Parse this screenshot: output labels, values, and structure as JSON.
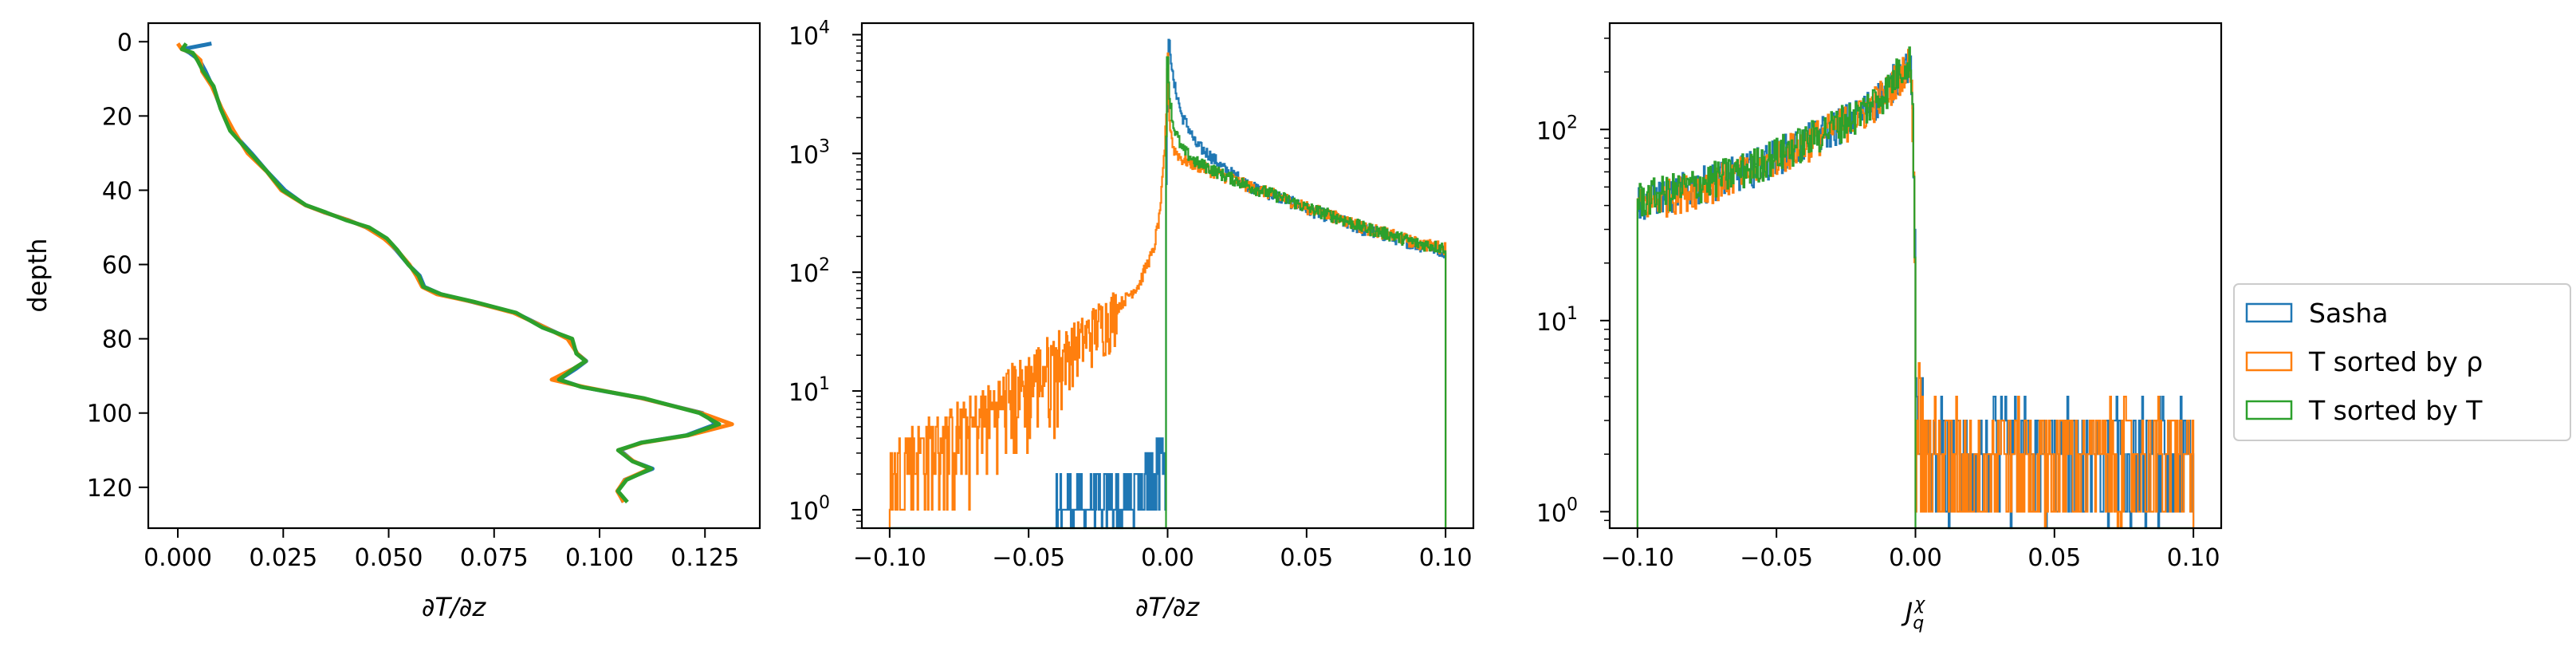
{
  "colors": {
    "sasha": "#1f77b4",
    "rho": "#ff7f0e",
    "t": "#2ca02c"
  },
  "legend": {
    "entries": [
      {
        "label": "Sasha",
        "color": "#1f77b4"
      },
      {
        "label": "T sorted by ρ",
        "color": "#ff7f0e"
      },
      {
        "label": "T sorted by T",
        "color": "#2ca02c"
      }
    ],
    "placement": "right, outside axes"
  },
  "chart_data": [
    {
      "type": "line",
      "xlabel": "∂T/∂z",
      "ylabel": "depth",
      "xlim": [
        -0.007,
        0.138
      ],
      "ylim": [
        131,
        -5
      ],
      "y_inverted": true,
      "xticks": [
        0.0,
        0.025,
        0.05,
        0.075,
        0.1,
        0.125
      ],
      "xtick_labels": [
        "0.000",
        "0.025",
        "0.050",
        "0.075",
        "0.100",
        "0.125"
      ],
      "yticks": [
        0,
        20,
        40,
        60,
        80,
        100,
        120
      ],
      "yticks_labels": [
        "0",
        "20",
        "40",
        "60",
        "80",
        "100",
        "120"
      ],
      "grid": false,
      "series": [
        {
          "name": "Sasha",
          "color": "#1f77b4",
          "points": [
            [
              0.008,
              0.5
            ],
            [
              0.001,
              2
            ],
            [
              0.003,
              3
            ],
            [
              0.005,
              5
            ],
            [
              0.006,
              8
            ],
            [
              0.008,
              12
            ],
            [
              0.01,
              18
            ],
            [
              0.013,
              24
            ],
            [
              0.017,
              30
            ],
            [
              0.021,
              35
            ],
            [
              0.025,
              40
            ],
            [
              0.03,
              44
            ],
            [
              0.035,
              46
            ],
            [
              0.04,
              48
            ],
            [
              0.045,
              50
            ],
            [
              0.049,
              53
            ],
            [
              0.052,
              56
            ],
            [
              0.055,
              60
            ],
            [
              0.057,
              63
            ],
            [
              0.058,
              66
            ],
            [
              0.062,
              68
            ],
            [
              0.07,
              70
            ],
            [
              0.08,
              73
            ],
            [
              0.087,
              77
            ],
            [
              0.093,
              80
            ],
            [
              0.095,
              84
            ],
            [
              0.097,
              86
            ],
            [
              0.094,
              88
            ],
            [
              0.09,
              91
            ],
            [
              0.096,
              93
            ],
            [
              0.11,
              96
            ],
            [
              0.124,
              100
            ],
            [
              0.128,
              103
            ],
            [
              0.121,
              106
            ],
            [
              0.11,
              108
            ],
            [
              0.105,
              110
            ],
            [
              0.108,
              113
            ],
            [
              0.112,
              115
            ],
            [
              0.106,
              118
            ],
            [
              0.104,
              121
            ],
            [
              0.106,
              124
            ]
          ]
        },
        {
          "name": "T sorted by ρ",
          "color": "#ff7f0e",
          "points": [
            [
              0.0,
              0.5
            ],
            [
              0.001,
              2
            ],
            [
              0.003,
              3
            ],
            [
              0.005,
              5
            ],
            [
              0.006,
              8
            ],
            [
              0.008,
              12
            ],
            [
              0.01,
              18
            ],
            [
              0.013,
              24
            ],
            [
              0.017,
              30
            ],
            [
              0.021,
              35
            ],
            [
              0.025,
              40
            ],
            [
              0.03,
              44
            ],
            [
              0.035,
              46
            ],
            [
              0.04,
              48
            ],
            [
              0.045,
              50
            ],
            [
              0.049,
              53
            ],
            [
              0.052,
              56
            ],
            [
              0.055,
              60
            ],
            [
              0.056,
              63
            ],
            [
              0.058,
              66
            ],
            [
              0.062,
              68
            ],
            [
              0.07,
              70
            ],
            [
              0.08,
              73
            ],
            [
              0.087,
              77
            ],
            [
              0.093,
              80
            ],
            [
              0.095,
              84
            ],
            [
              0.097,
              86
            ],
            [
              0.094,
              88
            ],
            [
              0.089,
              91
            ],
            [
              0.096,
              93
            ],
            [
              0.11,
              96
            ],
            [
              0.124,
              100
            ],
            [
              0.131,
              103
            ],
            [
              0.121,
              106
            ],
            [
              0.11,
              108
            ],
            [
              0.105,
              110
            ],
            [
              0.108,
              113
            ],
            [
              0.112,
              115
            ],
            [
              0.106,
              118
            ],
            [
              0.104,
              121
            ],
            [
              0.106,
              124
            ]
          ]
        },
        {
          "name": "T sorted by T",
          "color": "#2ca02c",
          "points": [
            [
              0.002,
              0.5
            ],
            [
              0.001,
              2
            ],
            [
              0.003,
              3
            ],
            [
              0.005,
              5
            ],
            [
              0.006,
              8
            ],
            [
              0.008,
              12
            ],
            [
              0.01,
              18
            ],
            [
              0.013,
              24
            ],
            [
              0.017,
              30
            ],
            [
              0.021,
              35
            ],
            [
              0.025,
              40
            ],
            [
              0.03,
              44
            ],
            [
              0.035,
              46
            ],
            [
              0.04,
              48
            ],
            [
              0.045,
              50
            ],
            [
              0.049,
              53
            ],
            [
              0.052,
              56
            ],
            [
              0.055,
              60
            ],
            [
              0.057,
              63
            ],
            [
              0.058,
              66
            ],
            [
              0.062,
              68
            ],
            [
              0.07,
              70
            ],
            [
              0.08,
              73
            ],
            [
              0.087,
              77
            ],
            [
              0.093,
              80
            ],
            [
              0.095,
              84
            ],
            [
              0.097,
              86
            ],
            [
              0.094,
              88
            ],
            [
              0.09,
              91
            ],
            [
              0.096,
              93
            ],
            [
              0.11,
              96
            ],
            [
              0.124,
              100
            ],
            [
              0.128,
              103
            ],
            [
              0.121,
              106
            ],
            [
              0.11,
              108
            ],
            [
              0.105,
              110
            ],
            [
              0.108,
              113
            ],
            [
              0.112,
              115
            ],
            [
              0.106,
              118
            ],
            [
              0.104,
              121
            ],
            [
              0.106,
              124
            ]
          ]
        }
      ]
    },
    {
      "type": "histogram",
      "xlabel": "∂T/∂z",
      "ylabel": "",
      "xlim": [
        -0.11,
        0.11
      ],
      "ylim": [
        0.7,
        12500
      ],
      "yscale": "log",
      "xticks": [
        -0.1,
        -0.05,
        0.0,
        0.05,
        0.1
      ],
      "xtick_labels": [
        "−0.10",
        "−0.05",
        "0.00",
        "0.05",
        "0.10"
      ],
      "yticks": [
        1,
        10,
        100,
        1000,
        10000
      ],
      "ytick_labels": [
        "10",
        "10",
        "10",
        "10",
        "10"
      ],
      "ytick_exponents": [
        "0",
        "1",
        "2",
        "3",
        "4"
      ],
      "grid": false,
      "series": [
        {
          "name": "Sasha",
          "color": "#1f77b4",
          "shape": [
            [
              -0.1,
              0
            ],
            [
              -0.04,
              0
            ],
            [
              -0.04,
              1
            ],
            [
              -0.02,
              1
            ],
            [
              -0.01,
              1.5
            ],
            [
              -0.002,
              3
            ],
            [
              -0.0005,
              4
            ],
            [
              0.0,
              3500
            ],
            [
              0.0005,
              9000
            ],
            [
              0.002,
              4000
            ],
            [
              0.005,
              2100
            ],
            [
              0.01,
              1200
            ],
            [
              0.02,
              750
            ],
            [
              0.03,
              520
            ],
            [
              0.05,
              340
            ],
            [
              0.07,
              230
            ],
            [
              0.09,
              170
            ],
            [
              0.1,
              150
            ]
          ]
        },
        {
          "name": "T sorted by ρ",
          "color": "#ff7f0e",
          "shape": [
            [
              -0.1,
              2
            ],
            [
              -0.09,
              3
            ],
            [
              -0.08,
              4
            ],
            [
              -0.07,
              5
            ],
            [
              -0.06,
              8
            ],
            [
              -0.05,
              12
            ],
            [
              -0.04,
              18
            ],
            [
              -0.03,
              28
            ],
            [
              -0.02,
              45
            ],
            [
              -0.015,
              60
            ],
            [
              -0.01,
              80
            ],
            [
              -0.005,
              150
            ],
            [
              -0.003,
              280
            ],
            [
              -0.002,
              500
            ],
            [
              -0.001,
              1000
            ],
            [
              -0.0003,
              2500
            ],
            [
              0.0,
              8000
            ],
            [
              0.0005,
              2000
            ],
            [
              0.002,
              1100
            ],
            [
              0.005,
              900
            ],
            [
              0.01,
              800
            ],
            [
              0.02,
              650
            ],
            [
              0.03,
              520
            ],
            [
              0.05,
              350
            ],
            [
              0.07,
              240
            ],
            [
              0.09,
              175
            ],
            [
              0.1,
              160
            ]
          ]
        },
        {
          "name": "T sorted by T",
          "color": "#2ca02c",
          "shape": [
            [
              -0.0005,
              0
            ],
            [
              0.0,
              9000
            ],
            [
              0.0005,
              3200
            ],
            [
              0.002,
              1700
            ],
            [
              0.005,
              1100
            ],
            [
              0.01,
              850
            ],
            [
              0.02,
              660
            ],
            [
              0.03,
              520
            ],
            [
              0.05,
              350
            ],
            [
              0.07,
              240
            ],
            [
              0.09,
              175
            ],
            [
              0.1,
              160
            ]
          ]
        }
      ]
    },
    {
      "type": "histogram",
      "xlabel": "J",
      "xlabel_sub": "q",
      "xlabel_sup": "χ",
      "ylabel": "",
      "xlim": [
        -0.11,
        0.11
      ],
      "ylim": [
        0.82,
        360
      ],
      "yscale": "log",
      "xticks": [
        -0.1,
        -0.05,
        0.0,
        0.05,
        0.1
      ],
      "xtick_labels": [
        "−0.10",
        "−0.05",
        "0.00",
        "0.05",
        "0.10"
      ],
      "yticks": [
        1,
        10,
        100
      ],
      "ytick_labels": [
        "10",
        "10",
        "10"
      ],
      "ytick_exponents": [
        "0",
        "1",
        "2"
      ],
      "grid": false,
      "series": [
        {
          "name": "Sasha",
          "color": "#1f77b4",
          "shape": [
            [
              -0.1,
              42
            ],
            [
              -0.08,
              50
            ],
            [
              -0.06,
              62
            ],
            [
              -0.04,
              85
            ],
            [
              -0.02,
              120
            ],
            [
              -0.01,
              160
            ],
            [
              -0.002,
              230
            ],
            [
              0.0,
              3
            ],
            [
              0.001,
              6
            ],
            [
              0.003,
              2
            ],
            [
              0.02,
              2
            ],
            [
              0.05,
              2
            ],
            [
              0.08,
              2
            ],
            [
              0.1,
              2
            ]
          ]
        },
        {
          "name": "T sorted by ρ",
          "color": "#ff7f0e",
          "shape": [
            [
              -0.1,
              40
            ],
            [
              -0.08,
              49
            ],
            [
              -0.06,
              60
            ],
            [
              -0.04,
              84
            ],
            [
              -0.02,
              118
            ],
            [
              -0.01,
              158
            ],
            [
              -0.002,
              225
            ],
            [
              0.0,
              2
            ],
            [
              0.001,
              4
            ],
            [
              0.003,
              2
            ],
            [
              0.02,
              2
            ],
            [
              0.05,
              2
            ],
            [
              0.08,
              2
            ],
            [
              0.1,
              2
            ]
          ]
        },
        {
          "name": "T sorted by T",
          "color": "#2ca02c",
          "shape": [
            [
              -0.1,
              43
            ],
            [
              -0.08,
              51
            ],
            [
              -0.06,
              63
            ],
            [
              -0.04,
              86
            ],
            [
              -0.02,
              122
            ],
            [
              -0.01,
              162
            ],
            [
              -0.002,
              240
            ],
            [
              0.0,
              0
            ]
          ]
        }
      ]
    }
  ]
}
